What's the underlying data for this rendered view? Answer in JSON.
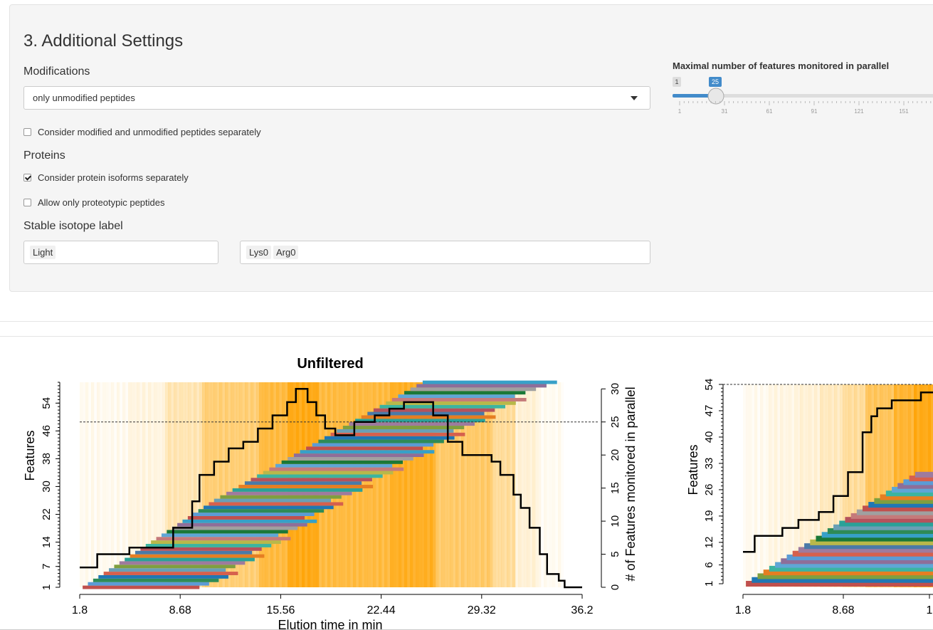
{
  "settings": {
    "section_title": "3. Additional Settings",
    "modifications_label": "Modifications",
    "modifications_value": "only unmodified peptides",
    "consider_modified_label": "Consider modified and unmodified peptides separately",
    "consider_modified_checked": false,
    "proteins_label": "Proteins",
    "isoforms_label": "Consider protein isoforms separately",
    "isoforms_checked": true,
    "proteotypic_label": "Allow only proteotypic peptides",
    "proteotypic_checked": false,
    "isotope_label": "Stable isotope label",
    "isotope_name_tags": [
      "Light"
    ],
    "isotope_residue_tags": [
      "Lys0",
      "Arg0"
    ]
  },
  "slider": {
    "title": "Maximal number of features monitored in parallel",
    "min_label": "1",
    "value_label": "25",
    "value": 25,
    "min": 1,
    "ticks": [
      "1",
      "31",
      "61",
      "91",
      "121",
      "151"
    ],
    "color": "#428bca"
  },
  "chart_data": [
    {
      "type": "bar",
      "title": "Unfiltered",
      "xlabel": "Elution time in min",
      "ylabel": "Features",
      "y2label": "# of Features monitored in parallel",
      "x_ticks": [
        "1.8",
        "8.68",
        "15.56",
        "22.44",
        "29.32",
        "36.2"
      ],
      "y_ticks": [
        "1",
        "7",
        "14",
        "22",
        "30",
        "38",
        "46",
        "54"
      ],
      "y2_ticks": [
        "0",
        "5",
        "10",
        "15",
        "20",
        "25",
        "30"
      ],
      "xlim": [
        1.8,
        36.2
      ],
      "ylim": [
        1,
        60
      ],
      "y2lim": [
        0,
        31
      ],
      "threshold": 25,
      "features_count": 60,
      "parallel_step": [
        [
          1.8,
          3
        ],
        [
          2.8,
          3
        ],
        [
          3,
          5
        ],
        [
          5,
          5
        ],
        [
          5.2,
          6
        ],
        [
          8,
          6
        ],
        [
          8.2,
          9
        ],
        [
          9.5,
          13
        ],
        [
          10,
          17
        ],
        [
          11,
          19
        ],
        [
          12,
          21
        ],
        [
          13,
          22
        ],
        [
          14,
          24
        ],
        [
          15,
          26
        ],
        [
          16,
          28
        ],
        [
          16.6,
          30
        ],
        [
          17,
          30
        ],
        [
          17.4,
          28
        ],
        [
          18,
          26
        ],
        [
          18.6,
          24
        ],
        [
          19,
          24
        ],
        [
          19.3,
          23
        ],
        [
          20,
          23
        ],
        [
          20.6,
          25
        ],
        [
          21.5,
          25
        ],
        [
          22,
          26
        ],
        [
          23,
          27
        ],
        [
          24,
          28
        ],
        [
          25,
          28
        ],
        [
          26,
          26
        ],
        [
          27,
          22
        ],
        [
          28,
          20
        ],
        [
          29,
          20
        ],
        [
          30,
          19
        ],
        [
          30.6,
          17
        ],
        [
          31.5,
          14
        ],
        [
          32,
          12
        ],
        [
          32.6,
          9
        ],
        [
          33.3,
          5
        ],
        [
          33.8,
          2
        ],
        [
          34.6,
          1
        ],
        [
          35,
          0
        ],
        [
          36.2,
          0
        ]
      ]
    },
    {
      "type": "bar",
      "title": "",
      "xlabel": "",
      "ylabel": "Features",
      "x_ticks": [
        "1.8",
        "8.68",
        "1"
      ],
      "y_ticks": [
        "1",
        "6",
        "12",
        "19",
        "26",
        "33",
        "40",
        "47",
        "54"
      ],
      "ylim": [
        1,
        54
      ],
      "threshold": 25,
      "features_count": 30,
      "parallel_step": [
        [
          1.8,
          4
        ],
        [
          2.4,
          4
        ],
        [
          2.6,
          6
        ],
        [
          3.6,
          6
        ],
        [
          4.5,
          7
        ],
        [
          5.2,
          7
        ],
        [
          5.6,
          8
        ],
        [
          6,
          8
        ],
        [
          7,
          9
        ],
        [
          8,
          11
        ],
        [
          9,
          14
        ],
        [
          10,
          19
        ],
        [
          10.6,
          21
        ],
        [
          11,
          22
        ],
        [
          12,
          23
        ],
        [
          13,
          23
        ],
        [
          14,
          24
        ],
        [
          15,
          25
        ],
        [
          15.6,
          25
        ]
      ]
    }
  ]
}
